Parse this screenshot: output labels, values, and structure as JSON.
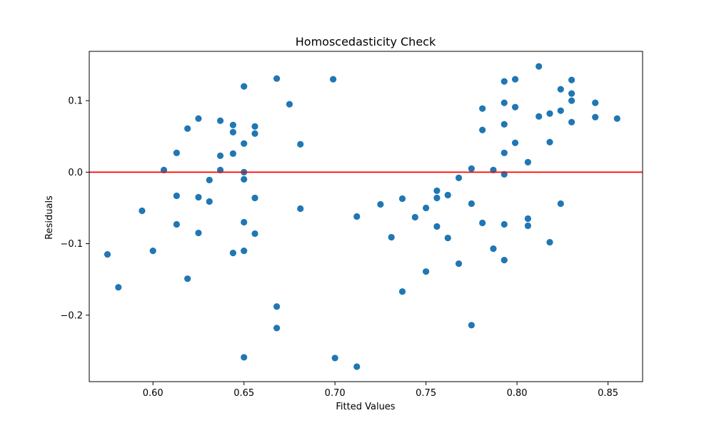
{
  "chart_data": {
    "type": "scatter",
    "title": "Homoscedasticity Check",
    "xlabel": "Fitted Values",
    "ylabel": "Residuals",
    "xlim": [
      0.565,
      0.869
    ],
    "ylim": [
      -0.293,
      0.169
    ],
    "x_ticks": [
      0.6,
      0.65,
      0.7,
      0.75,
      0.8,
      0.85
    ],
    "x_tick_labels": [
      "0.60",
      "0.65",
      "0.70",
      "0.75",
      "0.80",
      "0.85"
    ],
    "y_ticks": [
      -0.2,
      -0.1,
      0.0,
      0.1
    ],
    "y_tick_labels": [
      "−0.2",
      "−0.1",
      "0.0",
      "0.1"
    ],
    "grid": false,
    "point_color": "#1f77b4",
    "reference_line": {
      "y": 0.0,
      "color": "#ff0000"
    },
    "points": [
      {
        "x": 0.575,
        "y": -0.115
      },
      {
        "x": 0.581,
        "y": -0.161
      },
      {
        "x": 0.594,
        "y": -0.054
      },
      {
        "x": 0.6,
        "y": -0.11
      },
      {
        "x": 0.606,
        "y": 0.003
      },
      {
        "x": 0.613,
        "y": 0.027
      },
      {
        "x": 0.613,
        "y": -0.033
      },
      {
        "x": 0.613,
        "y": -0.073
      },
      {
        "x": 0.619,
        "y": 0.061
      },
      {
        "x": 0.619,
        "y": -0.149
      },
      {
        "x": 0.625,
        "y": 0.075
      },
      {
        "x": 0.625,
        "y": -0.035
      },
      {
        "x": 0.625,
        "y": -0.085
      },
      {
        "x": 0.631,
        "y": -0.011
      },
      {
        "x": 0.631,
        "y": -0.041
      },
      {
        "x": 0.637,
        "y": 0.072
      },
      {
        "x": 0.637,
        "y": 0.023
      },
      {
        "x": 0.637,
        "y": 0.003
      },
      {
        "x": 0.644,
        "y": 0.066
      },
      {
        "x": 0.644,
        "y": 0.056
      },
      {
        "x": 0.644,
        "y": 0.026
      },
      {
        "x": 0.644,
        "y": -0.113
      },
      {
        "x": 0.65,
        "y": 0.12
      },
      {
        "x": 0.65,
        "y": 0.04
      },
      {
        "x": 0.65,
        "y": 0.0
      },
      {
        "x": 0.65,
        "y": -0.01
      },
      {
        "x": 0.65,
        "y": -0.07
      },
      {
        "x": 0.65,
        "y": -0.11
      },
      {
        "x": 0.65,
        "y": -0.259
      },
      {
        "x": 0.656,
        "y": 0.064
      },
      {
        "x": 0.656,
        "y": 0.054
      },
      {
        "x": 0.656,
        "y": -0.036
      },
      {
        "x": 0.656,
        "y": -0.086
      },
      {
        "x": 0.668,
        "y": 0.131
      },
      {
        "x": 0.668,
        "y": -0.188
      },
      {
        "x": 0.668,
        "y": -0.218
      },
      {
        "x": 0.675,
        "y": 0.095
      },
      {
        "x": 0.681,
        "y": 0.039
      },
      {
        "x": 0.681,
        "y": -0.051
      },
      {
        "x": 0.699,
        "y": 0.13
      },
      {
        "x": 0.7,
        "y": -0.26
      },
      {
        "x": 0.712,
        "y": -0.062
      },
      {
        "x": 0.712,
        "y": -0.272
      },
      {
        "x": 0.725,
        "y": -0.045
      },
      {
        "x": 0.731,
        "y": -0.091
      },
      {
        "x": 0.737,
        "y": -0.037
      },
      {
        "x": 0.737,
        "y": -0.167
      },
      {
        "x": 0.744,
        "y": -0.063
      },
      {
        "x": 0.75,
        "y": -0.05
      },
      {
        "x": 0.75,
        "y": -0.139
      },
      {
        "x": 0.756,
        "y": -0.026
      },
      {
        "x": 0.756,
        "y": -0.036
      },
      {
        "x": 0.756,
        "y": -0.076
      },
      {
        "x": 0.762,
        "y": -0.032
      },
      {
        "x": 0.762,
        "y": -0.092
      },
      {
        "x": 0.768,
        "y": -0.008
      },
      {
        "x": 0.768,
        "y": -0.128
      },
      {
        "x": 0.775,
        "y": 0.005
      },
      {
        "x": 0.775,
        "y": -0.044
      },
      {
        "x": 0.775,
        "y": -0.214
      },
      {
        "x": 0.781,
        "y": 0.089
      },
      {
        "x": 0.781,
        "y": 0.059
      },
      {
        "x": 0.781,
        "y": -0.071
      },
      {
        "x": 0.787,
        "y": 0.003
      },
      {
        "x": 0.787,
        "y": -0.107
      },
      {
        "x": 0.793,
        "y": 0.127
      },
      {
        "x": 0.793,
        "y": 0.097
      },
      {
        "x": 0.793,
        "y": 0.067
      },
      {
        "x": 0.793,
        "y": 0.027
      },
      {
        "x": 0.793,
        "y": -0.003
      },
      {
        "x": 0.793,
        "y": -0.073
      },
      {
        "x": 0.793,
        "y": -0.123
      },
      {
        "x": 0.799,
        "y": 0.13
      },
      {
        "x": 0.799,
        "y": 0.091
      },
      {
        "x": 0.799,
        "y": 0.041
      },
      {
        "x": 0.806,
        "y": 0.014
      },
      {
        "x": 0.806,
        "y": -0.065
      },
      {
        "x": 0.806,
        "y": -0.075
      },
      {
        "x": 0.812,
        "y": 0.148
      },
      {
        "x": 0.812,
        "y": 0.078
      },
      {
        "x": 0.818,
        "y": 0.082
      },
      {
        "x": 0.818,
        "y": 0.042
      },
      {
        "x": 0.818,
        "y": -0.098
      },
      {
        "x": 0.824,
        "y": 0.116
      },
      {
        "x": 0.824,
        "y": 0.086
      },
      {
        "x": 0.824,
        "y": -0.044
      },
      {
        "x": 0.83,
        "y": 0.129
      },
      {
        "x": 0.83,
        "y": 0.11
      },
      {
        "x": 0.83,
        "y": 0.1
      },
      {
        "x": 0.83,
        "y": 0.07
      },
      {
        "x": 0.843,
        "y": 0.097
      },
      {
        "x": 0.843,
        "y": 0.077
      },
      {
        "x": 0.855,
        "y": 0.075
      }
    ]
  }
}
